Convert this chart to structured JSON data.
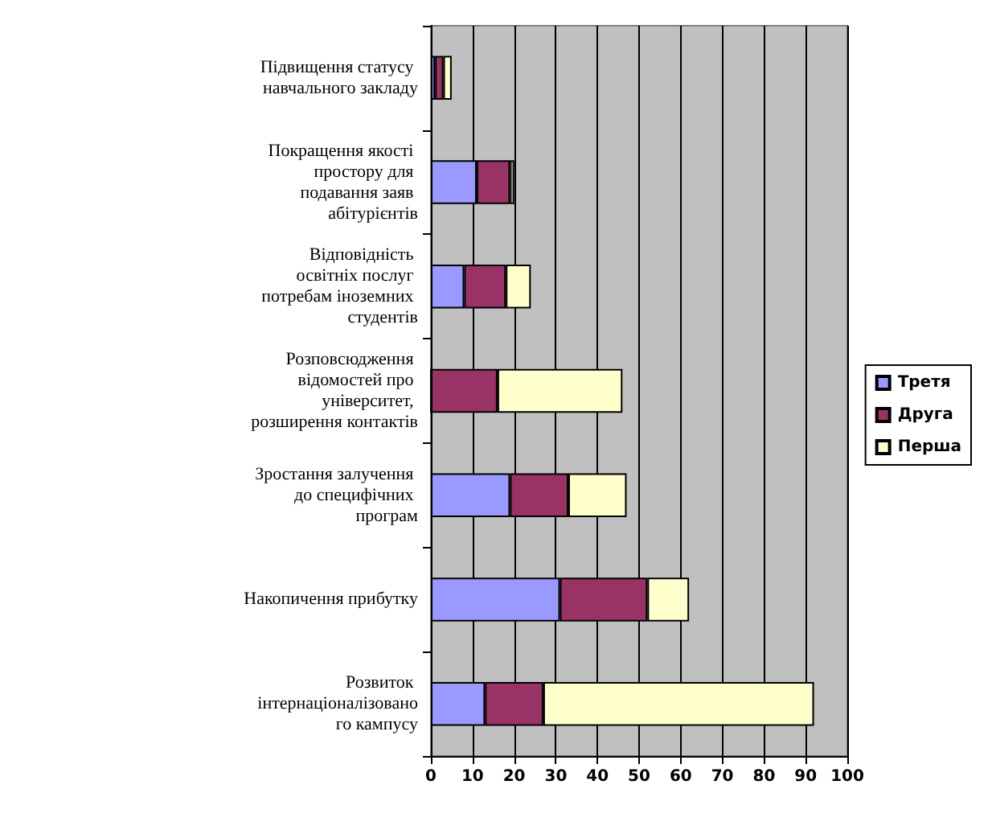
{
  "chart_data": {
    "type": "bar",
    "orientation": "horizontal",
    "stacked": true,
    "categories": [
      "Підвищення статусу навчального закладу",
      "Покращення якості простору для подавання заяв абітурієнтів",
      "Відповідність освітніх послуг потребам іноземних студентів",
      "Розповсюдження відомостей про університет, розширення контактів",
      "Зростання залучення до специфічних програм",
      "Накопичення прибутку",
      "Розвиток інтернаціоналізованого кампусу"
    ],
    "series": [
      {
        "name": "Третя",
        "color": "#9999ff",
        "values": [
          1,
          11,
          8,
          0,
          19,
          31,
          13
        ]
      },
      {
        "name": "Друга",
        "color": "#993366",
        "values": [
          2,
          8,
          10,
          16,
          14,
          21,
          14
        ]
      },
      {
        "name": "Перша",
        "color": "#ffffcc",
        "values": [
          2,
          1,
          6,
          30,
          14,
          10,
          65
        ]
      }
    ],
    "xlim": [
      0,
      100
    ],
    "xticks": [
      0,
      10,
      20,
      30,
      40,
      50,
      60,
      70,
      80,
      90,
      100
    ],
    "grid": "x",
    "legend": "right"
  }
}
